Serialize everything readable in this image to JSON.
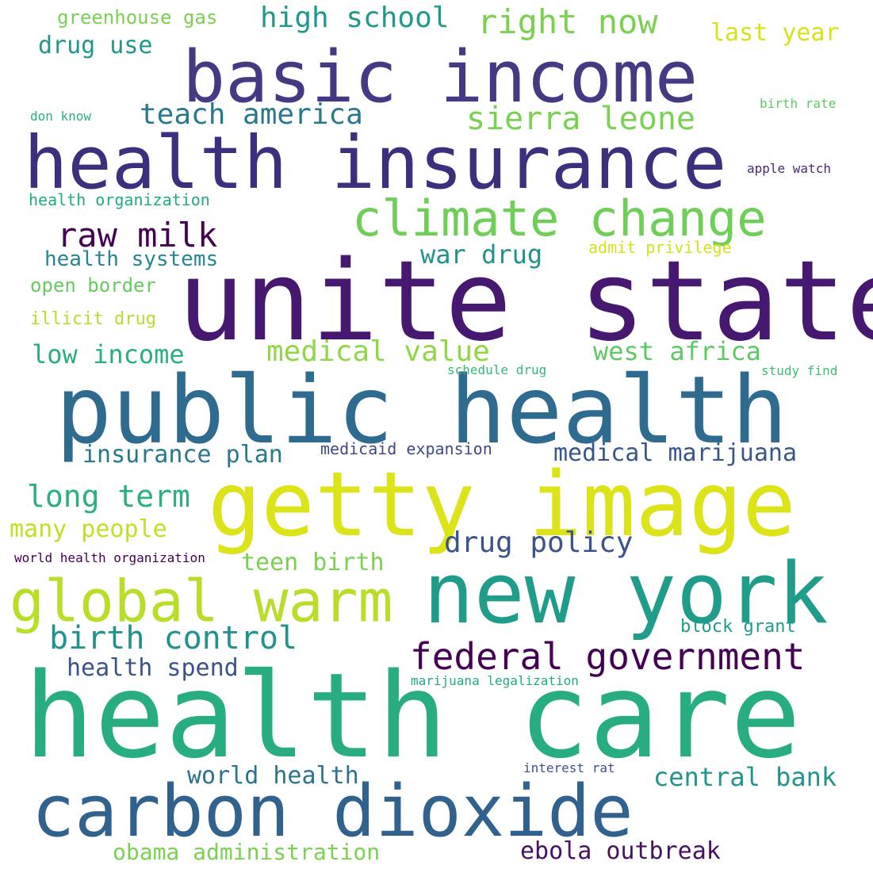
{
  "words": [
    {
      "text": "unite state",
      "color": "#46186f"
    },
    {
      "text": "health care",
      "color": "#27ad81"
    },
    {
      "text": "public health",
      "color": "#2e6b8e"
    },
    {
      "text": "getty image",
      "color": "#dce319"
    },
    {
      "text": "health insurance",
      "color": "#3e2f7e"
    },
    {
      "text": "basic income",
      "color": "#433a83"
    },
    {
      "text": "new york",
      "color": "#1f9d8a"
    },
    {
      "text": "carbon dioxide",
      "color": "#31628e"
    },
    {
      "text": "climate change",
      "color": "#6ece58"
    },
    {
      "text": "global warm",
      "color": "#b8de29"
    },
    {
      "text": "federal government",
      "color": "#440154"
    },
    {
      "text": "medical marijuana",
      "color": "#39568c"
    },
    {
      "text": "birth control",
      "color": "#20928c"
    },
    {
      "text": "raw milk",
      "color": "#440154"
    },
    {
      "text": "drug policy",
      "color": "#3b528b"
    },
    {
      "text": "right now",
      "color": "#7ad151"
    },
    {
      "text": "sierra leone",
      "color": "#7ad151"
    },
    {
      "text": "high school",
      "color": "#1f9a8a"
    },
    {
      "text": "teach america",
      "color": "#2a788e"
    },
    {
      "text": "medical value",
      "color": "#8fd744"
    },
    {
      "text": "west africa",
      "color": "#5ec962"
    },
    {
      "text": "long term",
      "color": "#2ab07f"
    },
    {
      "text": "war drug",
      "color": "#21918c"
    },
    {
      "text": "low income",
      "color": "#29af7f"
    },
    {
      "text": "insurance plan",
      "color": "#2a788e"
    },
    {
      "text": "central bank",
      "color": "#1f968b"
    },
    {
      "text": "world health",
      "color": "#2c728e"
    },
    {
      "text": "ebola outbreak",
      "color": "#471063"
    },
    {
      "text": "obama administration",
      "color": "#7ad151"
    },
    {
      "text": "health spend",
      "color": "#3b528b"
    },
    {
      "text": "teen birth",
      "color": "#7ad151"
    },
    {
      "text": "many people",
      "color": "#c2df23"
    },
    {
      "text": "last year",
      "color": "#d8e219"
    },
    {
      "text": "drug use",
      "color": "#1f978b"
    },
    {
      "text": "health systems",
      "color": "#24868e"
    },
    {
      "text": "greenhouse gas",
      "color": "#7ad151"
    },
    {
      "text": "open border",
      "color": "#66cb5d"
    },
    {
      "text": "illicit drug",
      "color": "#b5de2b"
    },
    {
      "text": "block grant",
      "color": "#1e9b8a"
    },
    {
      "text": "medicaid expansion",
      "color": "#3e4989"
    },
    {
      "text": "health organization",
      "color": "#22a884"
    },
    {
      "text": "admit privilege",
      "color": "#d2e21b"
    },
    {
      "text": "schedule drug",
      "color": "#35b779"
    },
    {
      "text": "study find",
      "color": "#3fbc73"
    },
    {
      "text": "marijuana legalization",
      "color": "#22a884"
    },
    {
      "text": "interest rat",
      "color": "#3b528b"
    },
    {
      "text": "world health organization",
      "color": "#440154"
    },
    {
      "text": "apple watch",
      "color": "#482878"
    },
    {
      "text": "birth rate",
      "color": "#5ec962"
    },
    {
      "text": "don know",
      "color": "#2ab07f"
    }
  ]
}
